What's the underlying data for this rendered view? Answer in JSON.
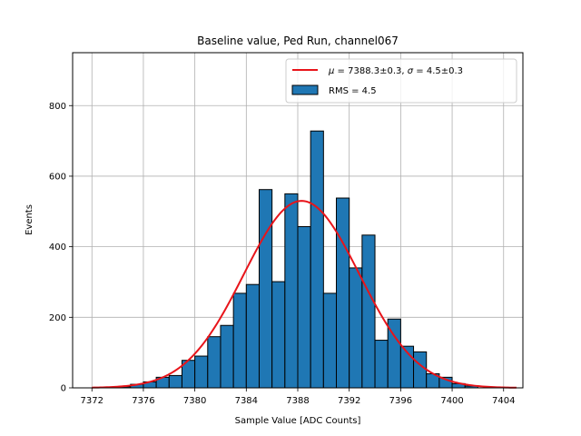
{
  "chart_data": {
    "type": "bar",
    "title": "Baseline value, Ped Run, channel067",
    "xlabel": "Sample Value [ADC Counts]",
    "ylabel": "Events",
    "xlim": [
      7370.5,
      7405.5
    ],
    "ylim": [
      0,
      950
    ],
    "xticks": [
      7372,
      7376,
      7380,
      7384,
      7388,
      7392,
      7396,
      7400,
      7404
    ],
    "yticks": [
      0,
      200,
      400,
      600,
      800
    ],
    "grid": true,
    "legend_position": "top-right",
    "histogram": {
      "name": "RMS = 4.5",
      "bin_width": 1,
      "bin_starts": [
        7374,
        7375,
        7376,
        7377,
        7378,
        7379,
        7380,
        7381,
        7382,
        7383,
        7384,
        7385,
        7386,
        7387,
        7388,
        7389,
        7390,
        7391,
        7392,
        7393,
        7394,
        7395,
        7396,
        7397,
        7398,
        7399,
        7400,
        7401
      ],
      "counts": [
        3,
        10,
        17,
        30,
        35,
        78,
        90,
        145,
        177,
        268,
        293,
        562,
        301,
        550,
        457,
        728,
        268,
        538,
        340,
        433,
        135,
        195,
        118,
        102,
        40,
        30,
        12,
        5
      ],
      "color": "#1f77b4"
    },
    "fit": {
      "name_prefix": "μ",
      "name_mu": " = 7388.3±0.3, ",
      "name_sigma_sym": "σ",
      "name_sigma": " = 4.5±0.3",
      "mu": 7388.3,
      "sigma": 4.5,
      "amplitude": 530,
      "x_range": [
        7372,
        7405
      ],
      "color": "#e8141a"
    }
  }
}
